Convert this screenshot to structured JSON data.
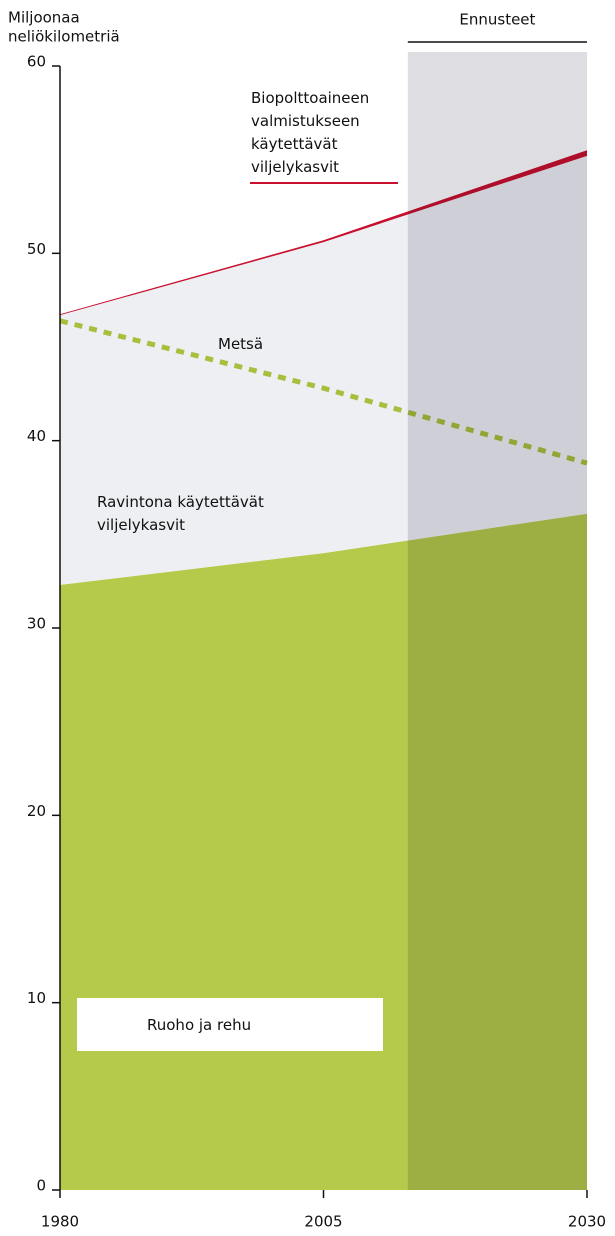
{
  "chart_data": {
    "type": "area",
    "y_label": [
      "Miljoonaa",
      "neliökilometriä"
    ],
    "forecast_label": "Ennusteet",
    "forecast_start": 2013,
    "x": [
      1980,
      2005,
      2030
    ],
    "xlim": [
      1980,
      2030
    ],
    "xticks": [
      1980,
      2005,
      2030
    ],
    "ylim": [
      0,
      60
    ],
    "yticks": [
      0,
      10,
      20,
      30,
      40,
      50,
      60
    ],
    "series": [
      {
        "name": "Ruoho ja rehu",
        "color": "#b5c94a",
        "values": [
          32.3,
          34.0,
          36.1
        ]
      },
      {
        "name": "Ravintona käytettävät viljelykasvit",
        "color": "#eeeff3",
        "values": [
          14.4,
          16.6,
          19.1
        ]
      },
      {
        "name": "Biopolttoaineen valmistukseen käytettävät viljelykasvit",
        "color": "#c8102e",
        "values": [
          0.05,
          0.1,
          0.3
        ]
      },
      {
        "name": "Metsä",
        "color": "#a6bf3c",
        "values": [
          46.4,
          42.8,
          38.8
        ],
        "stacked": false,
        "dashed": true
      }
    ]
  }
}
